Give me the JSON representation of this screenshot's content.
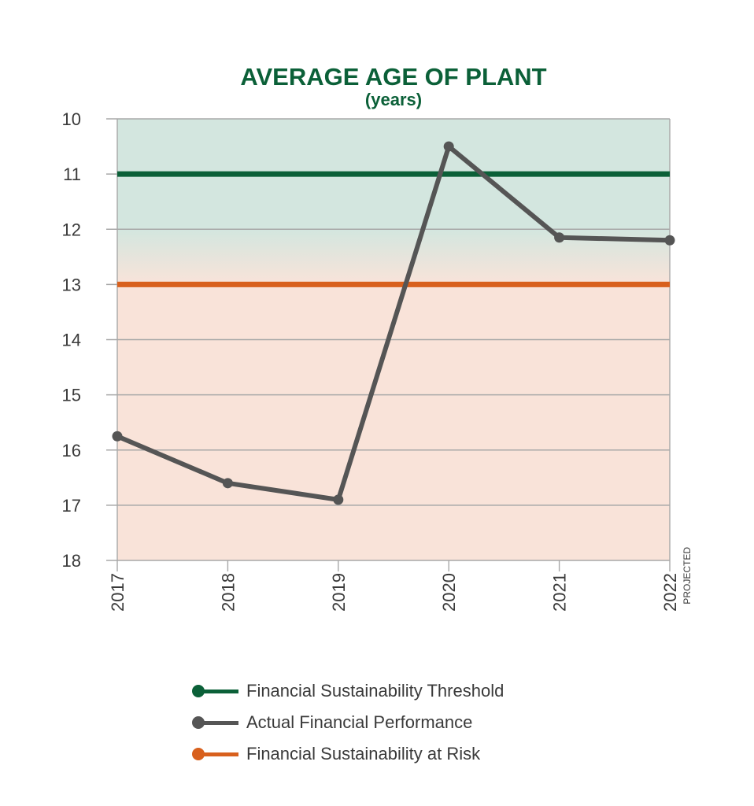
{
  "chart_data": {
    "type": "line",
    "title": "AVERAGE AGE OF PLANT",
    "subtitle": "(years)",
    "categories": [
      "2017",
      "2018",
      "2019",
      "2020",
      "2021",
      "2022"
    ],
    "category_note": {
      "index": 5,
      "text": "PROJECTED"
    },
    "ylim": [
      10,
      18
    ],
    "y_inverted": true,
    "yticks": [
      "10",
      "11",
      "12",
      "13",
      "14",
      "15",
      "16",
      "17",
      "18"
    ],
    "grid": true,
    "series": [
      {
        "name": "Actual Financial Performance",
        "color": "#555555",
        "values": [
          15.75,
          16.6,
          16.9,
          10.5,
          12.15,
          12.2
        ]
      }
    ],
    "reference_lines": [
      {
        "name": "Financial Sustainability Threshold",
        "value": 11,
        "color": "#0b6038"
      },
      {
        "name": "Financial Sustainability at Risk",
        "value": 13,
        "color": "#d8601d"
      }
    ],
    "bands": [
      {
        "from": 10,
        "to": 12,
        "color": "#d3e6df"
      },
      {
        "from": 13,
        "to": 18,
        "color": "#f9e3d9"
      }
    ],
    "legend_position": "bottom-center"
  },
  "legend": [
    {
      "label": "Financial Sustainability Threshold",
      "color": "#0b6038"
    },
    {
      "label": "Actual Financial Performance",
      "color": "#555555"
    },
    {
      "label": "Financial Sustainability at Risk",
      "color": "#d8601d"
    }
  ],
  "colors": {
    "title": "#0b6038",
    "axis_text": "#3a3a3a",
    "grid": "#a8a8a8"
  }
}
